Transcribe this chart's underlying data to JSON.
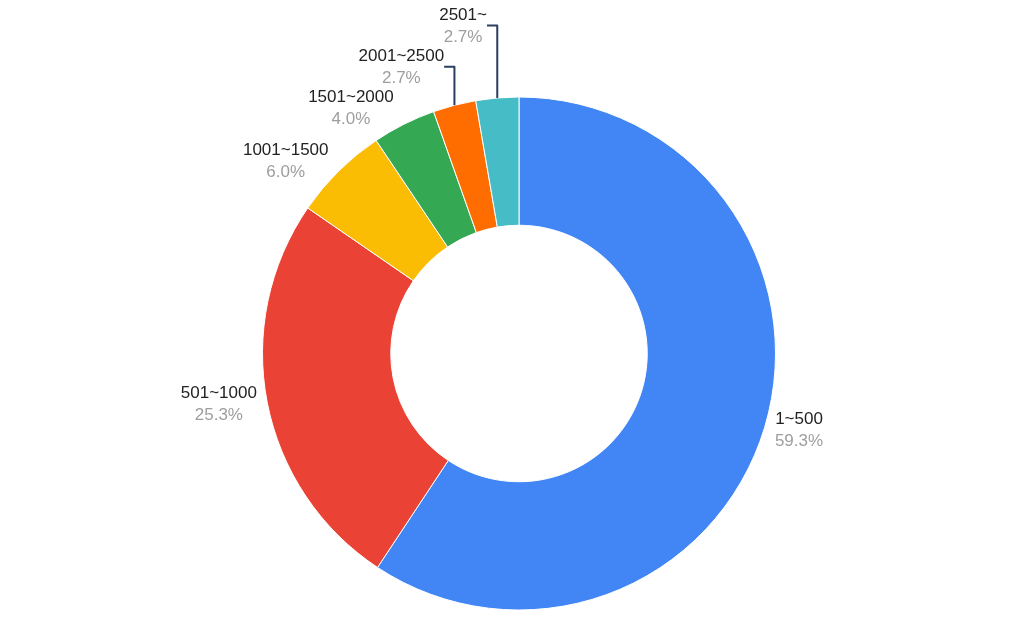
{
  "chart_data": {
    "type": "donut",
    "categories": [
      "1~500",
      "501~1000",
      "1001~1500",
      "1501~2000",
      "2001~2500",
      "2501~"
    ],
    "values": [
      59.3,
      25.3,
      6.0,
      4.0,
      2.7,
      2.7
    ],
    "value_labels": [
      "59.3%",
      "25.3%",
      "6.0%",
      "4.0%",
      "2.7%",
      "2.7%"
    ],
    "colors": [
      "#4285f4",
      "#ea4335",
      "#fbbc04",
      "#34a853",
      "#ff6d01",
      "#46bdc6"
    ],
    "legend": false
  }
}
